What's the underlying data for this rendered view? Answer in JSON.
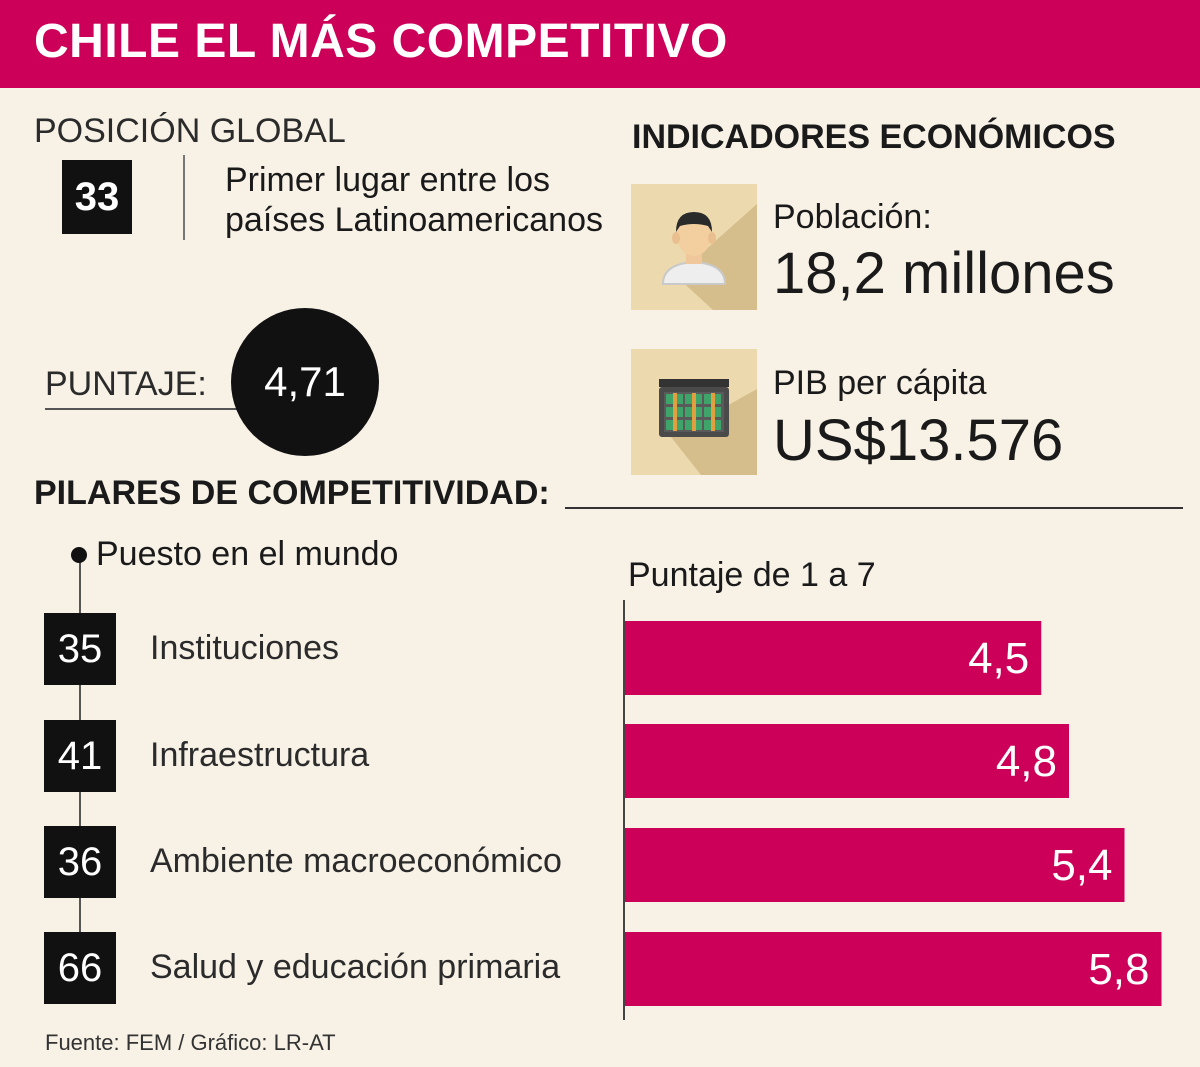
{
  "title": "CHILE  EL MÁS COMPETITIVO",
  "global_position": {
    "label": "POSICIÓN GLOBAL",
    "rank": "33",
    "description": "Primer lugar entre los países Latinoamericanos"
  },
  "score": {
    "label": "PUNTAJE:",
    "value": "4,71"
  },
  "indicators": {
    "title": "INDICADORES ECONÓMICOS",
    "population": {
      "label": "Población:",
      "value": "18,2 millones",
      "icon": "person-icon"
    },
    "gdp": {
      "label": "PIB per cápita",
      "value": "US$13.576",
      "icon": "money-briefcase-icon"
    }
  },
  "pillars": {
    "title": "PILARES DE COMPETITIVIDAD:",
    "rank_legend": "Puesto en el mundo",
    "score_legend": "Puntaje de 1 a 7"
  },
  "source": "Fuente: FEM / Gráfico: LR-AT",
  "colors": {
    "accent": "#cc0058",
    "background": "#f7f1e6",
    "dark": "#111111"
  },
  "chart_data": {
    "type": "bar",
    "orientation": "horizontal",
    "categories": [
      "Instituciones",
      "Infraestructura",
      "Ambiente macroeconómico",
      "Salud y educación primaria"
    ],
    "ranks": [
      "35",
      "41",
      "36",
      "66"
    ],
    "values": [
      4.5,
      4.8,
      5.4,
      5.8
    ],
    "value_labels": [
      "4,5",
      "4,8",
      "5,4",
      "5,8"
    ],
    "xlim": [
      0,
      6
    ]
  }
}
